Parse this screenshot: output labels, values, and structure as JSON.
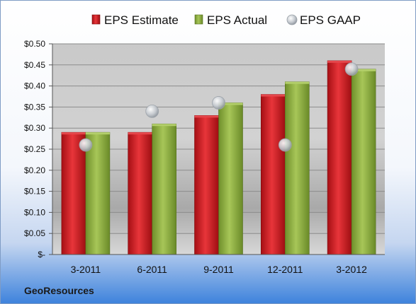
{
  "chart_data": {
    "type": "bar",
    "categories": [
      "3-2011",
      "6-2011",
      "9-2011",
      "12-2011",
      "3-2012"
    ],
    "series": [
      {
        "name": "EPS Estimate",
        "kind": "bar",
        "values": [
          0.29,
          0.29,
          0.33,
          0.38,
          0.46
        ]
      },
      {
        "name": "EPS Actual",
        "kind": "bar",
        "values": [
          0.29,
          0.31,
          0.36,
          0.41,
          0.44
        ]
      },
      {
        "name": "EPS GAAP",
        "kind": "marker",
        "values": [
          0.26,
          0.34,
          0.36,
          0.26,
          0.44
        ]
      }
    ],
    "ylim": [
      0,
      0.5
    ],
    "yticks": [
      "$-",
      "$0.05",
      "$0.10",
      "$0.15",
      "$0.20",
      "$0.25",
      "$0.30",
      "$0.35",
      "$0.40",
      "$0.45",
      "$0.50"
    ],
    "grid": true,
    "legend": "top",
    "footer": "GeoResources",
    "colors": {
      "estimate": "#c8181e",
      "actual": "#8aab3c",
      "gaap": "#b9bfc6"
    }
  }
}
